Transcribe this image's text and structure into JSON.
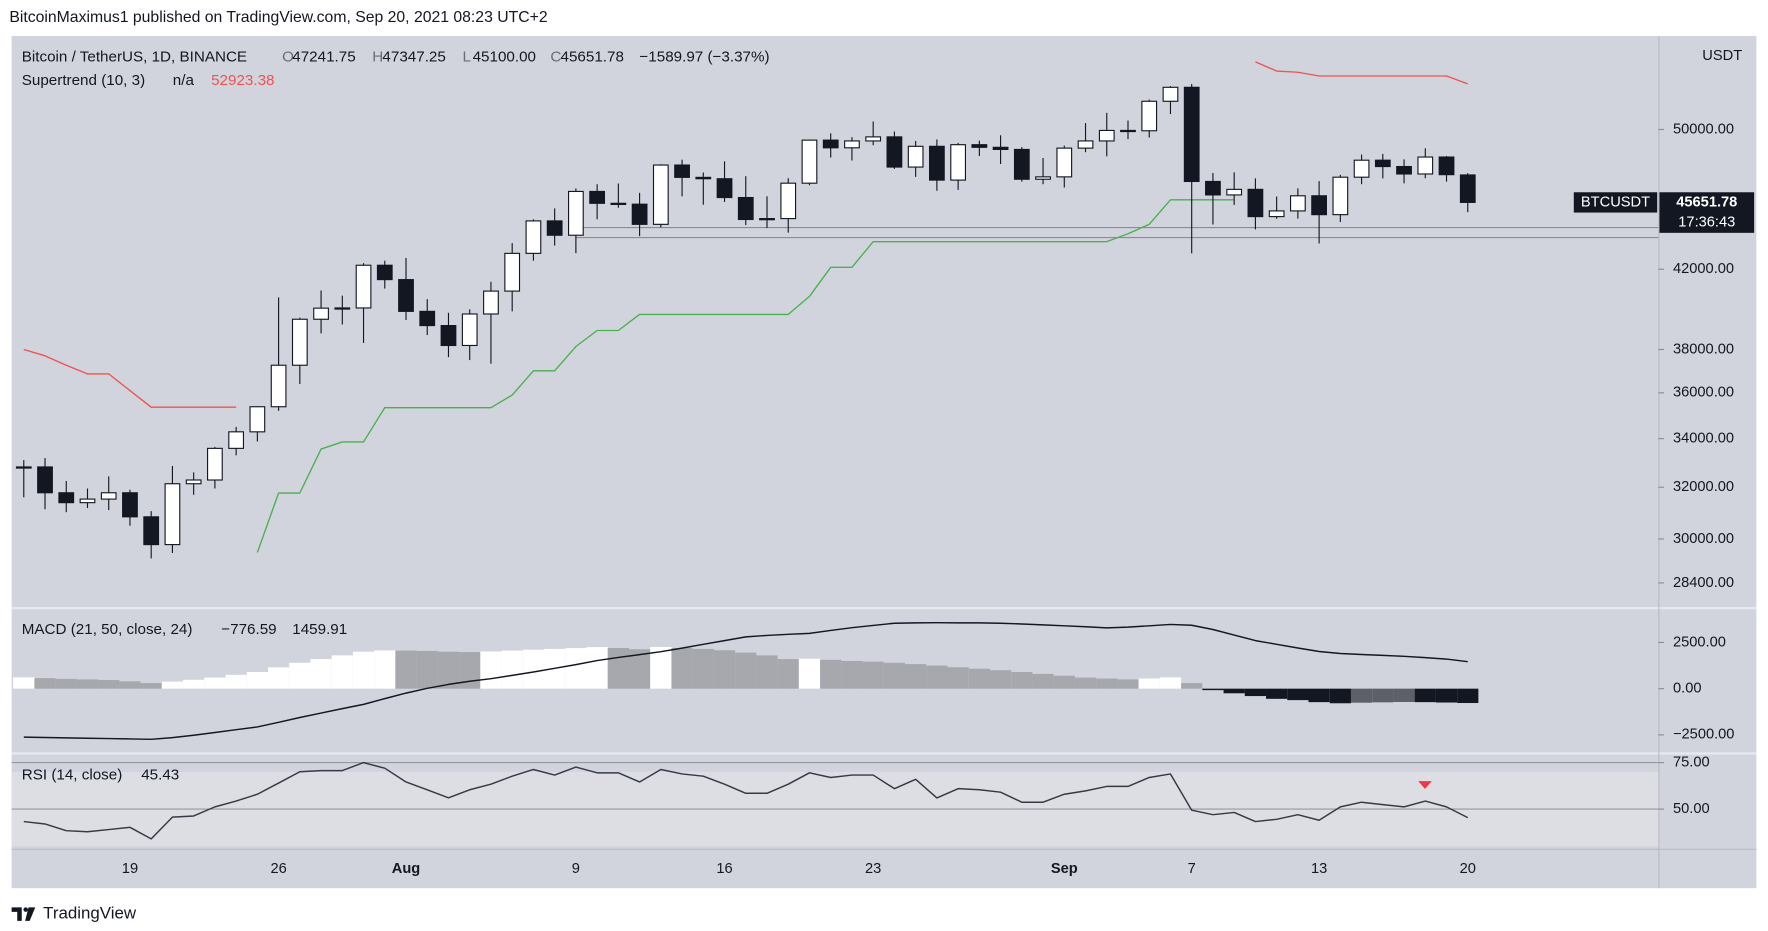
{
  "header": {
    "byline": "BitcoinMaximus1 published on TradingView.com, Sep 20, 2021 08:23 UTC+2",
    "footer": "TradingView"
  },
  "chart_data": [
    {
      "type": "candlestick",
      "title": "Bitcoin / TetherUS, 1D, BINANCE",
      "ohlc_keys": [
        "O",
        "H",
        "L",
        "C"
      ],
      "ohlc_labels": [
        "47241.75",
        "47347.25",
        "45100.00",
        "45651.78"
      ],
      "change_label": "−1589.97 (−3.37%)",
      "currency": "USDT",
      "symbol": "BTCUSDT",
      "countdown": "17:36:43",
      "log_scale": true,
      "up_color": "#ffffff",
      "down_color": "#131722",
      "wick_color": "#131722",
      "categories": [
        "Jul 14",
        "Jul 15",
        "Jul 16",
        "Jul 17",
        "Jul 18",
        "Jul 19",
        "Jul 20",
        "Jul 21",
        "Jul 22",
        "Jul 23",
        "Jul 24",
        "Jul 25",
        "Jul 26",
        "Jul 27",
        "Jul 28",
        "Jul 29",
        "Jul 30",
        "Jul 31",
        "Aug 1",
        "Aug 2",
        "Aug 3",
        "Aug 4",
        "Aug 5",
        "Aug 6",
        "Aug 7",
        "Aug 8",
        "Aug 9",
        "Aug 10",
        "Aug 11",
        "Aug 12",
        "Aug 13",
        "Aug 14",
        "Aug 15",
        "Aug 16",
        "Aug 17",
        "Aug 18",
        "Aug 19",
        "Aug 20",
        "Aug 21",
        "Aug 22",
        "Aug 23",
        "Aug 24",
        "Aug 25",
        "Aug 26",
        "Aug 27",
        "Aug 28",
        "Aug 29",
        "Aug 30",
        "Aug 31",
        "Sep 1",
        "Sep 2",
        "Sep 3",
        "Sep 4",
        "Sep 5",
        "Sep 6",
        "Sep 7",
        "Sep 8",
        "Sep 9",
        "Sep 10",
        "Sep 11",
        "Sep 12",
        "Sep 13",
        "Sep 14",
        "Sep 15",
        "Sep 16",
        "Sep 17",
        "Sep 18",
        "Sep 19",
        "Sep 20"
      ],
      "open": [
        32800,
        32820,
        31780,
        31390,
        31530,
        31780,
        30840,
        29790,
        32140,
        32290,
        33590,
        34290,
        35380,
        37260,
        39460,
        40010,
        40020,
        42210,
        41460,
        39850,
        39150,
        38190,
        39720,
        40870,
        42840,
        44610,
        43820,
        46280,
        45600,
        45550,
        44420,
        47830,
        47100,
        47020,
        45930,
        44690,
        44740,
        46760,
        49340,
        48870,
        49290,
        49540,
        47710,
        48960,
        46940,
        49060,
        48900,
        48770,
        46990,
        47130,
        48850,
        49290,
        49940,
        49920,
        51790,
        52700,
        46860,
        46080,
        46400,
        44850,
        45170,
        46030,
        44960,
        47110,
        48120,
        47740,
        47300,
        48310,
        47241.75
      ],
      "high": [
        33100,
        33185,
        32250,
        31950,
        32435,
        31900,
        31060,
        32860,
        32600,
        33650,
        34500,
        35400,
        40550,
        39540,
        40900,
        40640,
        42320,
        42450,
        42600,
        40460,
        39780,
        39950,
        41350,
        43390,
        44700,
        45310,
        46450,
        46700,
        46740,
        46200,
        47880,
        48150,
        47390,
        48050,
        47170,
        46000,
        47050,
        49380,
        49760,
        49520,
        50500,
        49870,
        49290,
        49380,
        49170,
        49310,
        49640,
        48910,
        48250,
        49000,
        50400,
        51050,
        50560,
        51900,
        52780,
        52920,
        47360,
        47400,
        47040,
        45990,
        46460,
        46880,
        47250,
        48460,
        48500,
        48170,
        48840,
        48370,
        47347.25
      ],
      "low": [
        31600,
        31133,
        31020,
        31180,
        31100,
        30500,
        29280,
        29480,
        31700,
        31950,
        33300,
        33880,
        35200,
        36400,
        38770,
        39200,
        38310,
        41000,
        39420,
        38690,
        37640,
        37500,
        37330,
        39850,
        42450,
        43260,
        42850,
        44700,
        45350,
        43770,
        44250,
        46000,
        45520,
        45680,
        44380,
        44220,
        43960,
        46640,
        48280,
        48100,
        49030,
        47600,
        47130,
        46320,
        46370,
        48370,
        47890,
        46850,
        46700,
        46510,
        48600,
        48350,
        49400,
        49500,
        50970,
        42840,
        44410,
        45510,
        44140,
        44730,
        44740,
        43370,
        44550,
        46700,
        47040,
        46750,
        47050,
        46850,
        45100
      ],
      "close": [
        32820,
        31780,
        31390,
        31530,
        31780,
        30840,
        29790,
        32140,
        32290,
        33590,
        34290,
        35380,
        37260,
        39460,
        40010,
        40020,
        42210,
        41460,
        39850,
        39150,
        38190,
        39720,
        40870,
        42840,
        44610,
        43820,
        46280,
        45600,
        45550,
        44420,
        47830,
        47100,
        47020,
        45930,
        44690,
        44740,
        46760,
        49340,
        48870,
        49290,
        49540,
        47710,
        48960,
        46940,
        49060,
        48900,
        48770,
        46990,
        47130,
        48850,
        49290,
        49940,
        49920,
        51790,
        52700,
        46860,
        46080,
        46400,
        44850,
        45170,
        46030,
        44960,
        47110,
        48120,
        47740,
        47300,
        48310,
        47260,
        45651.78
      ],
      "supertrend": {
        "label": "Supertrend (10, 3)",
        "status": "n/a",
        "value_label": "52923.38",
        "series": [
          {
            "color": "#ef5350",
            "values": [
              38000,
              37700,
              37260,
              36860,
              36860,
              36100,
              35360,
              35360,
              35360,
              35360,
              35360,
              null,
              null,
              null,
              null,
              null,
              null,
              null,
              null,
              null,
              null,
              null,
              null,
              null,
              null,
              null,
              null,
              null,
              null,
              null,
              null,
              null,
              null,
              null,
              null,
              null,
              null,
              null,
              null,
              null,
              null,
              null,
              null,
              null,
              null,
              null,
              null,
              null,
              null,
              null,
              null,
              null,
              null,
              null,
              null,
              null,
              null,
              null,
              54400,
              53780,
              53700,
              53450,
              53450,
              53450,
              53450,
              53450,
              53450,
              53450,
              52923.38
            ]
          },
          {
            "color": "#4caf50",
            "values": [
              null,
              null,
              null,
              null,
              null,
              null,
              null,
              null,
              null,
              null,
              null,
              29500,
              31770,
              31770,
              33560,
              33860,
              33860,
              35340,
              35340,
              35340,
              35340,
              35340,
              35340,
              35900,
              37000,
              37000,
              38140,
              38910,
              38910,
              39700,
              39700,
              39700,
              39700,
              39700,
              39700,
              39700,
              39700,
              40600,
              42100,
              42100,
              43470,
              43470,
              43470,
              43470,
              43470,
              43470,
              43470,
              43470,
              43470,
              43470,
              43470,
              43470,
              43900,
              44420,
              45800,
              45800,
              45800,
              45800,
              null,
              null,
              null,
              null,
              null,
              null,
              null,
              null,
              null,
              null,
              null
            ]
          }
        ]
      },
      "hlines": [
        44240,
        43690
      ],
      "hline_color": "#8a8d96",
      "ylim": [
        27580,
        56100
      ],
      "yticks": [
        {
          "value": 50000,
          "label": "50000.00"
        },
        {
          "value": 42000,
          "label": "42000.00"
        },
        {
          "value": 38000,
          "label": "38000.00"
        },
        {
          "value": 36000,
          "label": "36000.00"
        },
        {
          "value": 34000,
          "label": "34000.00"
        },
        {
          "value": 32000,
          "label": "32000.00"
        },
        {
          "value": 30000,
          "label": "30000.00"
        },
        {
          "value": 28400,
          "label": "28400.00"
        }
      ],
      "xticks": [
        {
          "value": "Jul 19",
          "label": "19"
        },
        {
          "value": "Jul 26",
          "label": "26"
        },
        {
          "value": "Aug 1",
          "label": "Aug"
        },
        {
          "value": "Aug 9",
          "label": "9"
        },
        {
          "value": "Aug 16",
          "label": "16"
        },
        {
          "value": "Aug 23",
          "label": "23"
        },
        {
          "value": "Sep 1",
          "label": "Sep"
        },
        {
          "value": "Sep 7",
          "label": "7"
        },
        {
          "value": "Sep 13",
          "label": "13"
        },
        {
          "value": "Sep 20",
          "label": "20"
        }
      ]
    },
    {
      "type": "macd",
      "title": "MACD (21, 50, close, 24)",
      "value_labels": [
        "−776.59",
        "1459.91"
      ],
      "histogram": [
        610,
        570,
        530,
        500,
        470,
        400,
        300,
        380,
        480,
        600,
        750,
        900,
        1150,
        1400,
        1600,
        1800,
        2000,
        2070,
        2060,
        2040,
        2000,
        1980,
        2010,
        2060,
        2110,
        2150,
        2195,
        2250,
        2200,
        2130,
        2256,
        2200,
        2150,
        2080,
        1950,
        1800,
        1600,
        1620,
        1560,
        1500,
        1463,
        1400,
        1330,
        1250,
        1160,
        1080,
        1000,
        900,
        800,
        700,
        600,
        550,
        500,
        550,
        610,
        300,
        -80,
        -250,
        -400,
        -550,
        -620,
        -730,
        -790,
        -760,
        -740,
        -720,
        -730,
        -750,
        -776.59
      ],
      "line": [
        -2620,
        -2640,
        -2660,
        -2680,
        -2700,
        -2720,
        -2740,
        -2650,
        -2520,
        -2370,
        -2220,
        -2070,
        -1820,
        -1560,
        -1320,
        -1080,
        -850,
        -540,
        -240,
        20,
        230,
        400,
        540,
        720,
        900,
        1100,
        1300,
        1520,
        1690,
        1840,
        2000,
        2195,
        2400,
        2600,
        2800,
        2880,
        2940,
        2990,
        3150,
        3300,
        3420,
        3540,
        3560,
        3570,
        3560,
        3560,
        3540,
        3500,
        3450,
        3400,
        3350,
        3290,
        3330,
        3400,
        3475,
        3430,
        3200,
        2900,
        2600,
        2400,
        2200,
        2010,
        1900,
        1850,
        1800,
        1750,
        1680,
        1600,
        1459.91
      ],
      "hist_colors": {
        "pos_rise": "#ffffff",
        "pos_fall": "#a6a8ae",
        "neg_fall": "#131722",
        "neg_rise": "#5d6068"
      },
      "line_color": "#131722",
      "ylim": [
        -3415,
        4268
      ],
      "yticks": [
        {
          "value": 2500,
          "label": "2500.00"
        },
        {
          "value": 0,
          "label": "0.00"
        },
        {
          "value": -2500,
          "label": "−2500.00"
        }
      ]
    },
    {
      "type": "rsi",
      "title": "RSI (14, close)",
      "value_label": "45.43",
      "values": [
        43.3,
        42,
        38.4,
        37.8,
        39,
        40.2,
        34,
        45.7,
        46.3,
        51.2,
        54.3,
        58,
        64,
        70.1,
        70.7,
        70.7,
        75,
        72,
        64.6,
        60.4,
        56.1,
        60.4,
        63.4,
        67.7,
        71.3,
        68.3,
        72.6,
        69.5,
        69.5,
        64.6,
        71.3,
        68.9,
        67.7,
        63.4,
        58.5,
        58.5,
        63.4,
        69.5,
        67,
        68.3,
        68.3,
        61,
        66,
        56,
        61,
        60.4,
        59.1,
        53.7,
        53.7,
        58,
        59.8,
        62.2,
        62.2,
        67,
        68.9,
        49.4,
        47,
        48.2,
        43.3,
        44.5,
        47,
        44,
        51.2,
        53.7,
        52.4,
        51.2,
        54.3,
        51.2,
        45.43
      ],
      "color": "#363a45",
      "band": [
        30,
        70
      ],
      "grid": true,
      "ylim": [
        29.3,
        79
      ],
      "yticks": [
        {
          "value": 75,
          "label": "75.00"
        },
        {
          "value": 50,
          "label": "50.00"
        }
      ]
    }
  ]
}
